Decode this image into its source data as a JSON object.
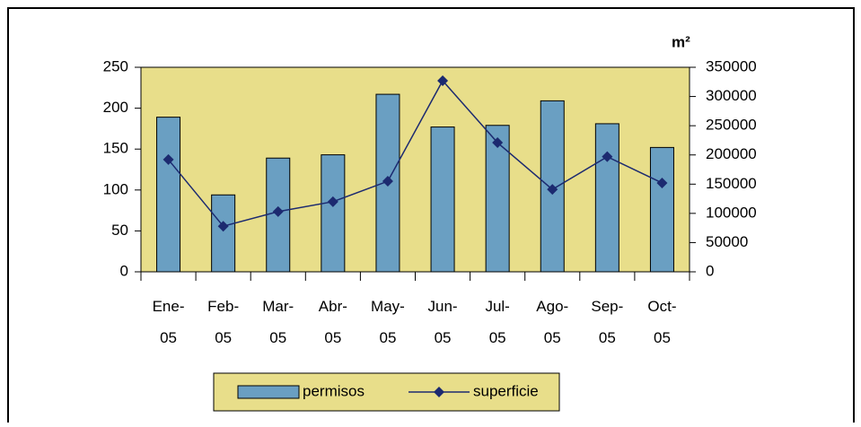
{
  "chart_data": {
    "type": "bar-line",
    "categories": [
      "Ene-05",
      "Feb-05",
      "Mar-05",
      "Abr-05",
      "May-05",
      "Jun-05",
      "Jul-05",
      "Ago-05",
      "Sep-05",
      "Oct-05"
    ],
    "series": [
      {
        "name": "permisos",
        "type": "bar",
        "color": "#6a9fc2",
        "values": [
          189,
          94,
          139,
          143,
          217,
          177,
          179,
          209,
          181,
          152
        ]
      },
      {
        "name": "superficie",
        "type": "line",
        "axis": "y2",
        "color": "#1c2a70",
        "values": [
          192000,
          78000,
          103000,
          120000,
          155000,
          327000,
          221000,
          141000,
          197000,
          152000
        ]
      }
    ],
    "y2_label": "m²",
    "ylim": [
      0,
      250
    ],
    "yticks": [
      0,
      50,
      100,
      150,
      200,
      250
    ],
    "y2lim": [
      0,
      350000
    ],
    "y2ticks": [
      0,
      50000,
      100000,
      150000,
      200000,
      250000,
      300000,
      350000
    ],
    "plot_background": "#e8de8a",
    "legend": "bottom"
  }
}
